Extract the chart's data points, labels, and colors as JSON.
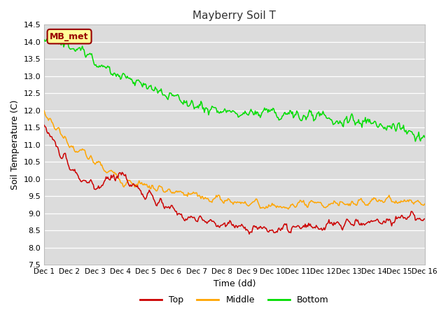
{
  "title": "Mayberry Soil T",
  "xlabel": "Time (dd)",
  "ylabel": "Soil Temperature (C)",
  "ylim": [
    7.5,
    14.5
  ],
  "yticks": [
    7.5,
    8.0,
    8.5,
    9.0,
    9.5,
    10.0,
    10.5,
    11.0,
    11.5,
    12.0,
    12.5,
    13.0,
    13.5,
    14.0,
    14.5
  ],
  "xtick_labels": [
    "Dec 1",
    "Dec 2",
    "Dec 3",
    "Dec 4",
    "Dec 5",
    "Dec 6",
    "Dec 7",
    "Dec 8",
    "Dec 9",
    "Dec 10",
    "Dec 11",
    "Dec 12",
    "Dec 13",
    "Dec 14",
    "Dec 15",
    "Dec 16"
  ],
  "colors": {
    "top": "#cc0000",
    "middle": "#ffa500",
    "bottom": "#00dd00",
    "plot_bg": "#dcdcdc",
    "grid": "#ffffff",
    "annotation_bg": "#ffff99",
    "annotation_border": "#990000",
    "annotation_text": "#990000"
  },
  "annotation_text": "MB_met",
  "legend_labels": [
    "Top",
    "Middle",
    "Bottom"
  ],
  "n_points": 450
}
